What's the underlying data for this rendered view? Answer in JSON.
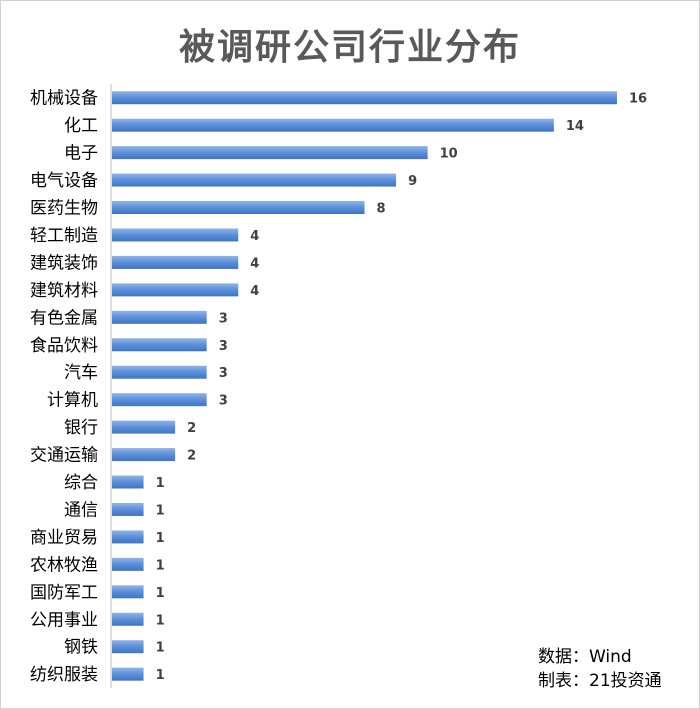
{
  "chart_data": {
    "type": "bar",
    "orientation": "horizontal",
    "title": "被调研公司行业分布",
    "categories": [
      "机械设备",
      "化工",
      "电子",
      "电气设备",
      "医药生物",
      "轻工制造",
      "建筑装饰",
      "建筑材料",
      "有色金属",
      "食品饮料",
      "汽车",
      "计算机",
      "银行",
      "交通运输",
      "综合",
      "通信",
      "商业贸易",
      "农林牧渔",
      "国防军工",
      "公用事业",
      "钢铁",
      "纺织服装"
    ],
    "values": [
      16,
      14,
      10,
      9,
      8,
      4,
      4,
      4,
      3,
      3,
      3,
      3,
      2,
      2,
      1,
      1,
      1,
      1,
      1,
      1,
      1,
      1
    ],
    "xlim": [
      0,
      16
    ],
    "grid": false,
    "legend": "none",
    "bar_color": "#5b8fd8",
    "data_labels": true
  },
  "source": {
    "data_line": "数据：Wind",
    "made_by_line": "制表：21投资通"
  }
}
